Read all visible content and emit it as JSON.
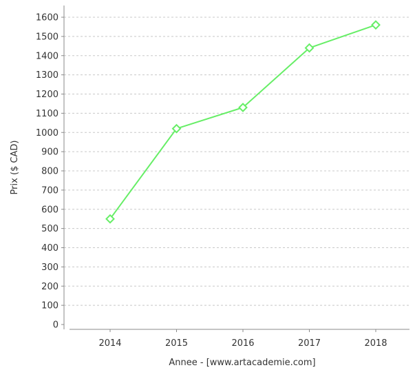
{
  "chart_data": {
    "type": "line",
    "xlabel": "Annee - [www.artacademie.com]",
    "ylabel": "Prix ($ CAD)",
    "categories": [
      "2014",
      "2015",
      "2016",
      "2017",
      "2018"
    ],
    "series": [
      {
        "values": [
          550,
          1020,
          1130,
          1440,
          1560
        ],
        "color": "#66ee66",
        "marker": "diamond"
      }
    ],
    "ylim": [
      0,
      1650
    ],
    "yticks": [
      0,
      100,
      200,
      300,
      400,
      500,
      600,
      700,
      800,
      900,
      1000,
      1100,
      1200,
      1300,
      1400,
      1500,
      1600
    ],
    "grid": "horizontal-dashed",
    "legend": "none"
  }
}
